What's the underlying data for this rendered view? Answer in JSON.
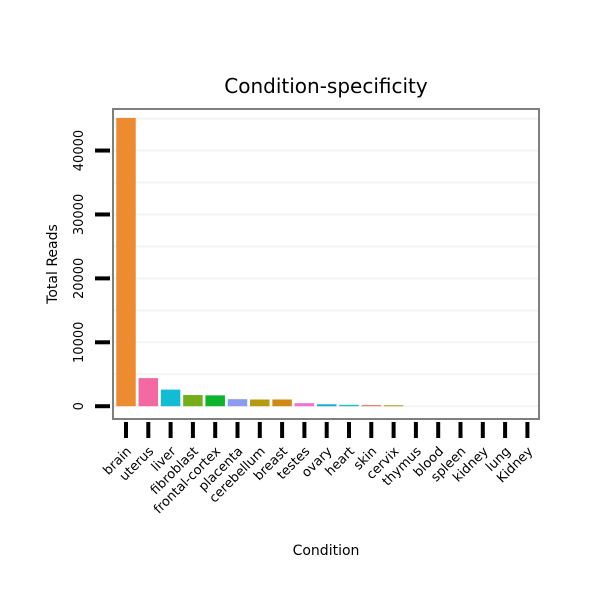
{
  "chart_data": {
    "type": "bar",
    "title": "Condition-specificity",
    "xlabel": "Condition",
    "ylabel": "Total Reads",
    "ylim": [
      -2000,
      46500
    ],
    "yticks": [
      0,
      10000,
      20000,
      30000,
      40000
    ],
    "grid": true,
    "legend": "none",
    "categories": [
      "brain",
      "uterus",
      "liver",
      "fibroblast",
      "frontal-cortex",
      "placenta",
      "cerebellum",
      "breast",
      "testes",
      "ovary",
      "heart",
      "skin",
      "cervix",
      "thymus",
      "blood",
      "spleen",
      "kidney",
      "lung",
      "Kidney"
    ],
    "values": [
      45100,
      4400,
      2600,
      1750,
      1700,
      1100,
      1050,
      1050,
      480,
      300,
      220,
      180,
      150,
      0,
      0,
      0,
      0,
      0,
      0
    ],
    "colors": [
      "#ED8B31",
      "#F569A3",
      "#12BCD4",
      "#76AD1B",
      "#0FB42E",
      "#8A9BF0",
      "#B79A0F",
      "#CE8A12",
      "#F471CE",
      "#16A7E1",
      "#1DC0C0",
      "#E8786F",
      "#A9A30E",
      "#7ECF62",
      "#88A2F5",
      "#C57ADF",
      "#6FB8E8",
      "#E6A24B",
      "#9A9A9A"
    ]
  }
}
